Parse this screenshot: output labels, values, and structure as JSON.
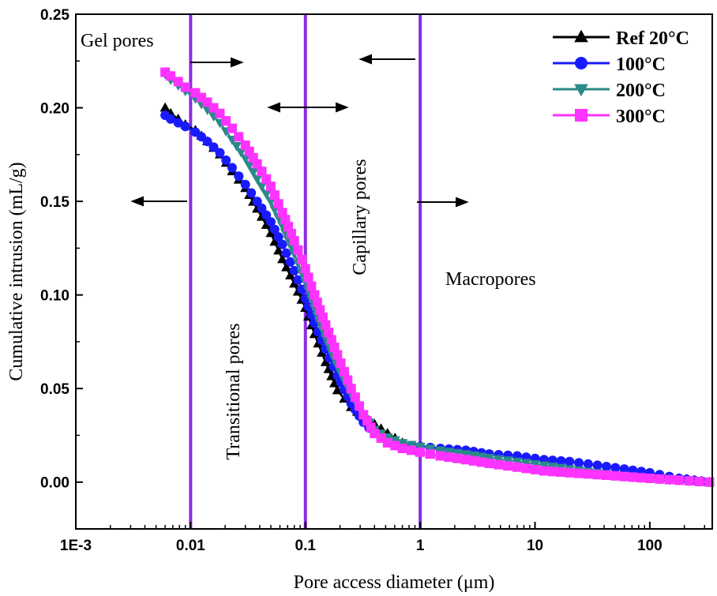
{
  "chart_data": {
    "type": "line",
    "title": "",
    "xlabel": "Pore access diameter (μm)",
    "ylabel": "Cumulative intrusion (mL/g)",
    "x_scale": "log",
    "xlim": [
      0.001,
      350
    ],
    "ylim": [
      -0.025,
      0.25
    ],
    "x_ticks": [
      {
        "value": 0.001,
        "label": "1E-3"
      },
      {
        "value": 0.01,
        "label": "0.01"
      },
      {
        "value": 0.1,
        "label": "0.1"
      },
      {
        "value": 1,
        "label": "1"
      },
      {
        "value": 10,
        "label": "10"
      },
      {
        "value": 100,
        "label": "100"
      }
    ],
    "y_ticks": [
      {
        "value": 0.0,
        "label": "0.00"
      },
      {
        "value": 0.05,
        "label": "0.05"
      },
      {
        "value": 0.1,
        "label": "0.10"
      },
      {
        "value": 0.15,
        "label": "0.15"
      },
      {
        "value": 0.2,
        "label": "0.20"
      },
      {
        "value": 0.25,
        "label": "0.25"
      }
    ],
    "legend_position": "top-right",
    "grid": false,
    "boundaries": [
      0.01,
      0.1,
      1
    ],
    "boundary_color": "#8a2be2",
    "annotations": {
      "gel": "Gel pores",
      "transitional": "Transitional pores",
      "capillary": "Capillary pores",
      "macro": "Macropores"
    },
    "series": [
      {
        "name": "Ref 20°C",
        "color": "#000000",
        "marker": "triangle-up",
        "x": [
          0.006,
          0.0067,
          0.0078,
          0.009,
          0.011,
          0.014,
          0.018,
          0.023,
          0.03,
          0.038,
          0.05,
          0.063,
          0.08,
          0.1,
          0.12,
          0.15,
          0.19,
          0.25,
          0.32,
          0.4,
          0.52,
          0.7,
          1.0,
          1.5,
          2.5,
          4,
          7,
          12,
          20,
          35,
          60,
          100,
          180,
          330
        ],
        "y": [
          0.2,
          0.197,
          0.194,
          0.191,
          0.188,
          0.182,
          0.175,
          0.166,
          0.157,
          0.146,
          0.133,
          0.119,
          0.106,
          0.093,
          0.079,
          0.064,
          0.049,
          0.04,
          0.035,
          0.031,
          0.026,
          0.021,
          0.016,
          0.014,
          0.012,
          0.011,
          0.009,
          0.007,
          0.005,
          0.004,
          0.003,
          0.003,
          0.002,
          0.0
        ]
      },
      {
        "name": "100°C",
        "color": "#1a1aff",
        "marker": "circle",
        "x": [
          0.006,
          0.0067,
          0.0078,
          0.009,
          0.011,
          0.014,
          0.018,
          0.023,
          0.03,
          0.038,
          0.05,
          0.063,
          0.08,
          0.1,
          0.12,
          0.15,
          0.19,
          0.25,
          0.32,
          0.4,
          0.52,
          0.7,
          1.0,
          1.5,
          2.5,
          4,
          7,
          12,
          20,
          35,
          60,
          100,
          180,
          330
        ],
        "y": [
          0.196,
          0.194,
          0.192,
          0.19,
          0.187,
          0.182,
          0.176,
          0.168,
          0.159,
          0.15,
          0.139,
          0.127,
          0.113,
          0.098,
          0.085,
          0.071,
          0.057,
          0.042,
          0.032,
          0.026,
          0.022,
          0.02,
          0.019,
          0.018,
          0.017,
          0.015,
          0.014,
          0.012,
          0.011,
          0.009,
          0.007,
          0.005,
          0.002,
          0.0
        ]
      },
      {
        "name": "200°C",
        "color": "#2a8a8a",
        "marker": "triangle-down",
        "x": [
          0.006,
          0.0067,
          0.0078,
          0.009,
          0.011,
          0.014,
          0.018,
          0.023,
          0.03,
          0.038,
          0.05,
          0.063,
          0.08,
          0.1,
          0.12,
          0.15,
          0.19,
          0.25,
          0.32,
          0.4,
          0.52,
          0.7,
          1.0,
          1.5,
          2.5,
          4,
          7,
          12,
          20,
          35,
          60,
          100,
          180,
          330
        ],
        "y": [
          0.218,
          0.215,
          0.212,
          0.209,
          0.205,
          0.199,
          0.192,
          0.183,
          0.173,
          0.162,
          0.15,
          0.137,
          0.122,
          0.107,
          0.093,
          0.077,
          0.062,
          0.047,
          0.036,
          0.028,
          0.024,
          0.021,
          0.019,
          0.017,
          0.015,
          0.013,
          0.011,
          0.009,
          0.007,
          0.005,
          0.003,
          0.002,
          0.001,
          0.0
        ]
      },
      {
        "name": "300°C",
        "color": "#ff33ff",
        "marker": "square",
        "x": [
          0.006,
          0.0067,
          0.0078,
          0.009,
          0.011,
          0.014,
          0.018,
          0.023,
          0.03,
          0.038,
          0.05,
          0.063,
          0.08,
          0.1,
          0.12,
          0.15,
          0.19,
          0.25,
          0.32,
          0.4,
          0.52,
          0.7,
          1.0,
          1.5,
          2.5,
          4,
          7,
          12,
          20,
          35,
          60,
          100,
          180,
          330
        ],
        "y": [
          0.219,
          0.217,
          0.214,
          0.211,
          0.208,
          0.203,
          0.197,
          0.189,
          0.18,
          0.17,
          0.158,
          0.144,
          0.129,
          0.114,
          0.1,
          0.084,
          0.068,
          0.05,
          0.036,
          0.026,
          0.021,
          0.018,
          0.016,
          0.014,
          0.012,
          0.01,
          0.008,
          0.006,
          0.005,
          0.004,
          0.003,
          0.002,
          0.001,
          0.0
        ]
      }
    ]
  }
}
